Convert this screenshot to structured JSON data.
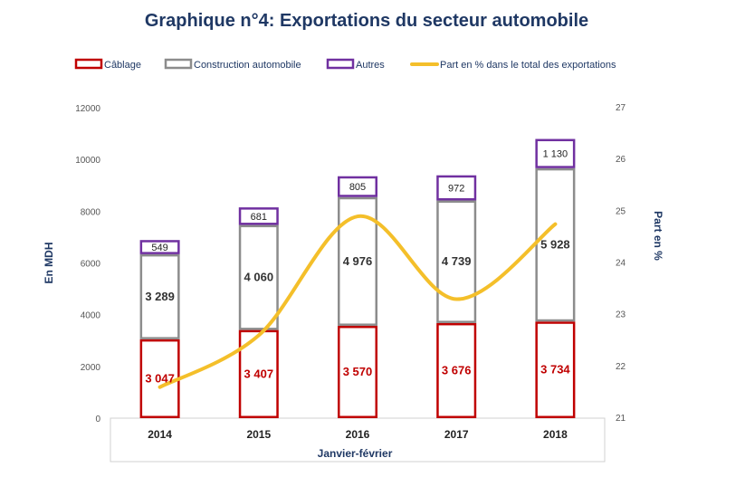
{
  "title": "Graphique n°4: Exportations  du secteur automobile",
  "colors": {
    "cablage": "#c00000",
    "construction": "#8c8c8c",
    "autres": "#7030a0",
    "line": "#f4bf2a",
    "title": "#1f3864"
  },
  "legend": [
    {
      "label": "Câblage",
      "key": "cablage",
      "kind": "box"
    },
    {
      "label": "Construction automobile",
      "key": "construction",
      "kind": "box"
    },
    {
      "label": "Autres",
      "key": "autres",
      "kind": "box"
    },
    {
      "label": "Part en % dans le total des exportations",
      "key": "line",
      "kind": "line"
    }
  ],
  "chart_data": {
    "type": "bar",
    "stacked": true,
    "categories": [
      "2014",
      "2015",
      "2016",
      "2017",
      "2018"
    ],
    "series": [
      {
        "name": "Câblage",
        "values": [
          3047,
          3407,
          3570,
          3676,
          3734
        ],
        "labels": [
          "3 047",
          "3 407",
          "3 570",
          "3 676",
          "3 734"
        ]
      },
      {
        "name": "Construction automobile",
        "values": [
          3289,
          4060,
          4976,
          4739,
          5928
        ],
        "labels": [
          "3 289",
          "4 060",
          "4 976",
          "4 739",
          "5 928"
        ]
      },
      {
        "name": "Autres",
        "values": [
          549,
          681,
          805,
          972,
          1130
        ],
        "labels": [
          "549",
          "681",
          "805",
          "972",
          "1 130"
        ]
      }
    ],
    "line_series": {
      "name": "Part en % dans le total des exportations",
      "axis": "right",
      "values": [
        21.6,
        22.6,
        24.9,
        23.3,
        24.75
      ]
    },
    "xlabel": "Janvier-février",
    "ylabel": "En MDH",
    "y2label": "Part en %",
    "ylim": [
      0,
      12000
    ],
    "yticks": [
      "0",
      "2000",
      "4000",
      "6000",
      "8000",
      "10000",
      "12000"
    ],
    "y2lim": [
      21,
      27
    ],
    "y2ticks": [
      "21",
      "22",
      "23",
      "24",
      "25",
      "26",
      "27"
    ],
    "grid": false,
    "legend_position": "top"
  }
}
